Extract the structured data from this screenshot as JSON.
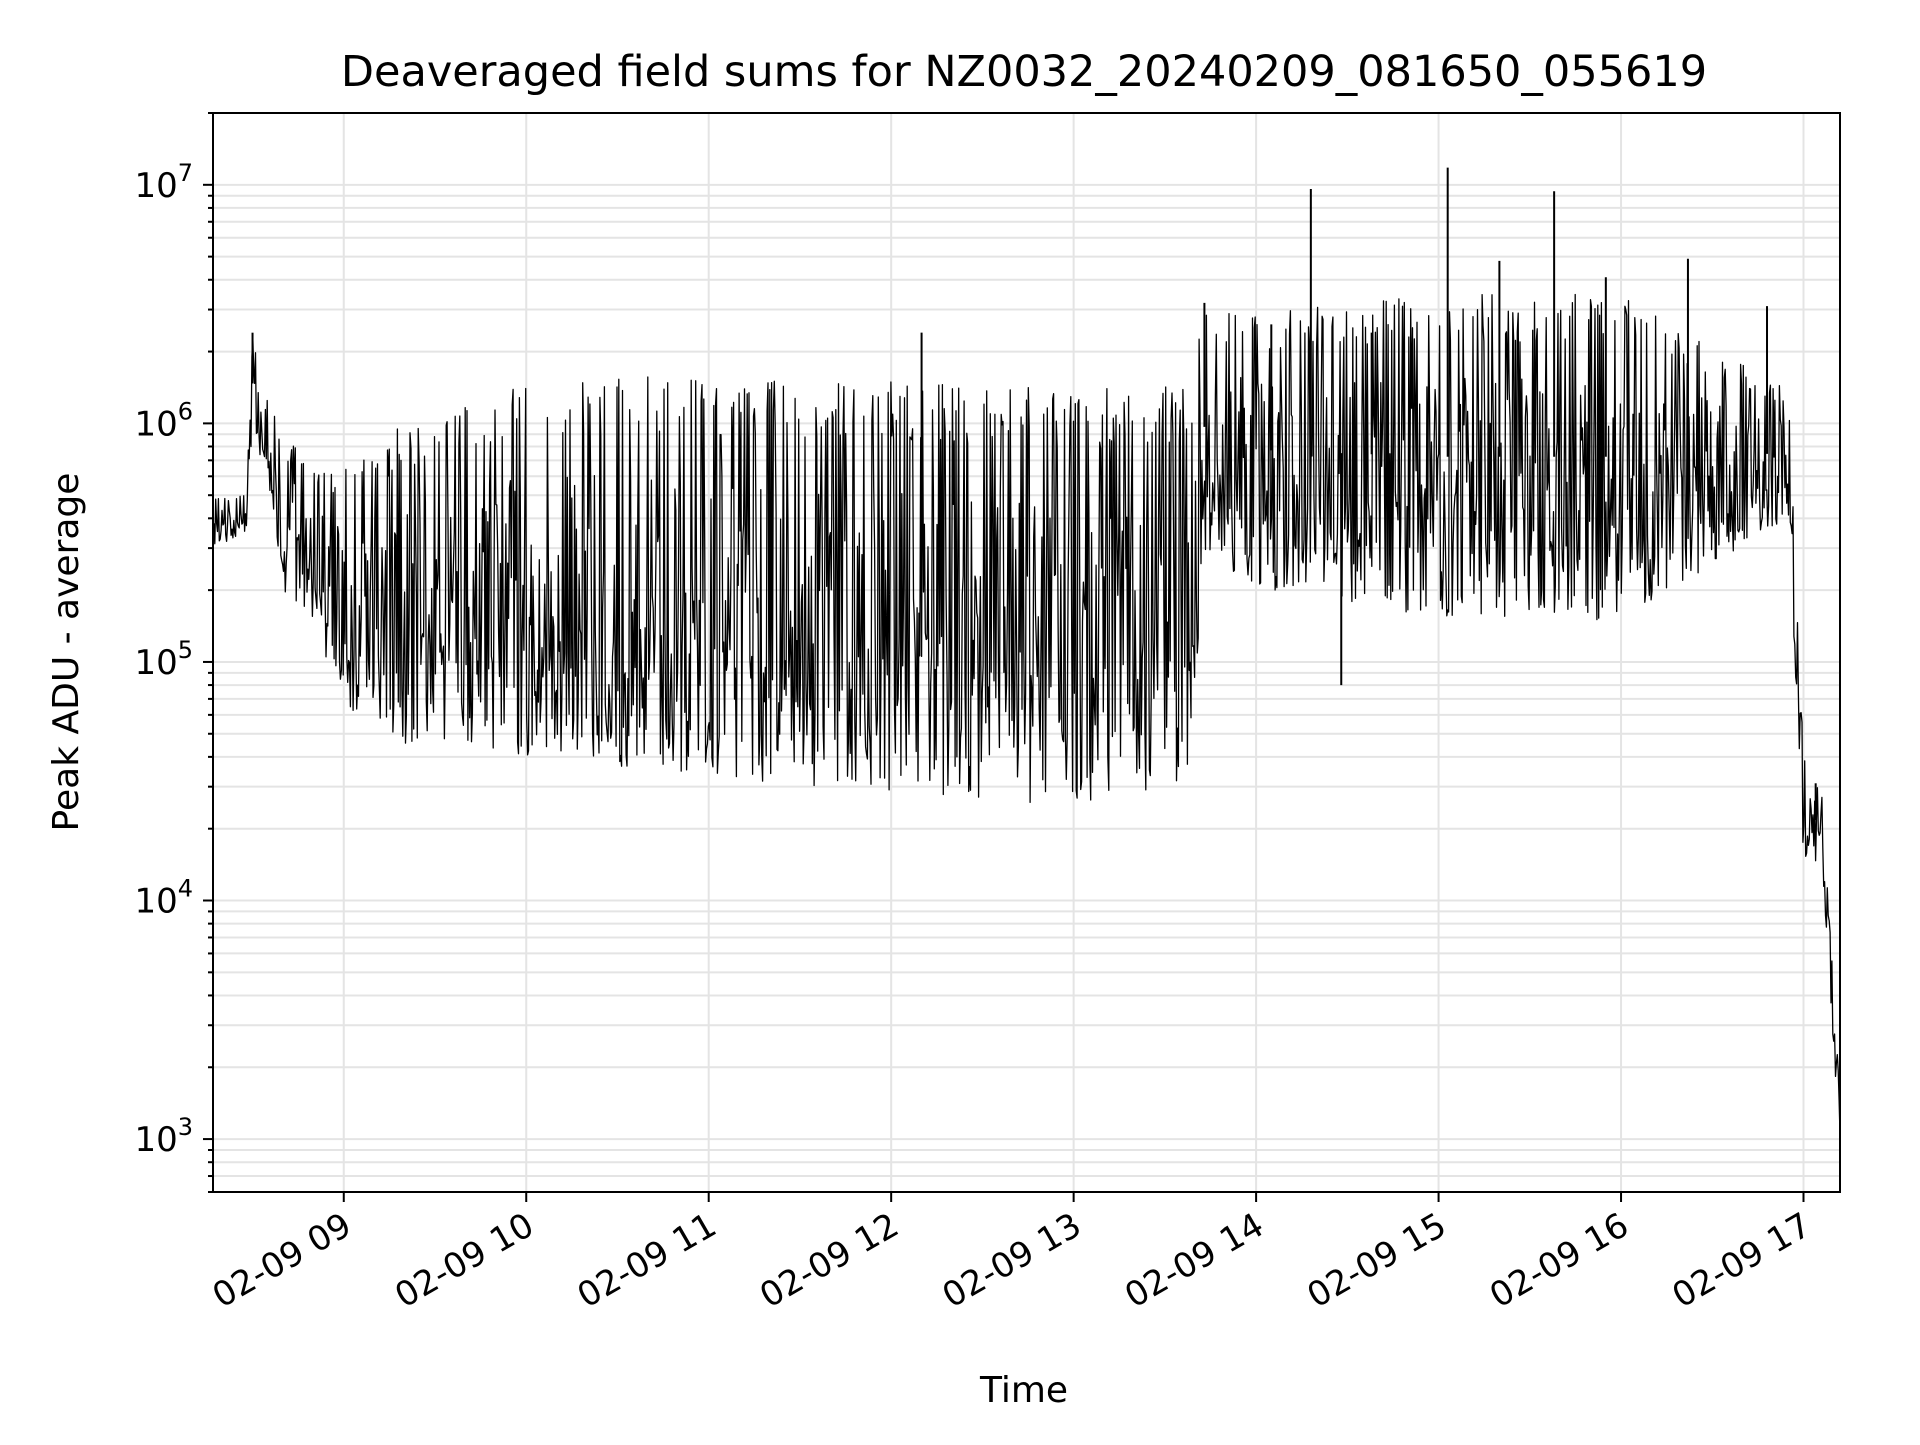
{
  "chart_data": {
    "type": "line",
    "title": "Deaveraged field sums for NZ0032_20240209_081650_055619",
    "xlabel": "Time",
    "ylabel": "Peak ADU - average",
    "yscale": "log",
    "grid": true,
    "ylim": [
      600,
      20000000
    ],
    "xlim": [
      "02-09 08:17",
      "02-09 17:12"
    ],
    "x_ticks": [
      {
        "label": "02-09 09",
        "value": "02-09 09:00"
      },
      {
        "label": "02-09 10",
        "value": "02-09 10:00"
      },
      {
        "label": "02-09 11",
        "value": "02-09 11:00"
      },
      {
        "label": "02-09 12",
        "value": "02-09 12:00"
      },
      {
        "label": "02-09 13",
        "value": "02-09 13:00"
      },
      {
        "label": "02-09 14",
        "value": "02-09 14:00"
      },
      {
        "label": "02-09 15",
        "value": "02-09 15:00"
      },
      {
        "label": "02-09 16",
        "value": "02-09 16:00"
      },
      {
        "label": "02-09 17",
        "value": "02-09 17:00"
      }
    ],
    "y_ticks": [
      {
        "base": "10",
        "exp": "3",
        "value": 1000
      },
      {
        "base": "10",
        "exp": "4",
        "value": 10000
      },
      {
        "base": "10",
        "exp": "5",
        "value": 100000
      },
      {
        "base": "10",
        "exp": "6",
        "value": 1000000
      },
      {
        "base": "10",
        "exp": "7",
        "value": 10000000
      }
    ],
    "series": [
      {
        "color": "#000000",
        "profile": [
          {
            "x": "02-09 08:17",
            "low": 300000,
            "high": 500000
          },
          {
            "x": "02-09 08:28",
            "low": 350000,
            "high": 500000
          },
          {
            "x": "02-09 08:30",
            "low": 900000,
            "high": 2400000
          },
          {
            "x": "02-09 08:35",
            "low": 600000,
            "high": 1300000
          },
          {
            "x": "02-09 08:40",
            "low": 200000,
            "high": 900000
          },
          {
            "x": "02-09 08:50",
            "low": 150000,
            "high": 700000
          },
          {
            "x": "02-09 09:00",
            "low": 60000,
            "high": 700000
          },
          {
            "x": "02-09 09:20",
            "low": 45000,
            "high": 1000000
          },
          {
            "x": "02-09 10:00",
            "low": 40000,
            "high": 1500000
          },
          {
            "x": "02-09 11:00",
            "low": 33000,
            "high": 1600000
          },
          {
            "x": "02-09 12:00",
            "low": 28000,
            "high": 1500000
          },
          {
            "x": "02-09 13:00",
            "low": 25000,
            "high": 1400000
          },
          {
            "x": "02-09 13:40",
            "low": 28000,
            "high": 1500000
          },
          {
            "x": "02-09 13:42",
            "low": 300000,
            "high": 3200000
          },
          {
            "x": "02-09 14:00",
            "low": 200000,
            "high": 3000000
          },
          {
            "x": "02-09 15:00",
            "low": 150000,
            "high": 3500000
          },
          {
            "x": "02-09 16:00",
            "low": 150000,
            "high": 3500000
          },
          {
            "x": "02-09 16:55",
            "low": 400000,
            "high": 1400000
          },
          {
            "x": "02-09 17:00",
            "low": 15000,
            "high": 40000
          },
          {
            "x": "02-09 17:06",
            "low": 14000,
            "high": 30000
          },
          {
            "x": "02-09 17:12",
            "low": 900,
            "high": 1500
          }
        ],
        "spikes": [
          {
            "x": "02-09 08:30",
            "y": 2400000
          },
          {
            "x": "02-09 12:10",
            "y": 2400000
          },
          {
            "x": "02-09 13:43",
            "y": 3200000
          },
          {
            "x": "02-09 14:05",
            "y": 2600000
          },
          {
            "x": "02-09 14:18",
            "y": 9600000
          },
          {
            "x": "02-09 14:28",
            "y": 80000
          },
          {
            "x": "02-09 14:38",
            "y": 2400000
          },
          {
            "x": "02-09 15:03",
            "y": 11800000
          },
          {
            "x": "02-09 15:20",
            "y": 4800000
          },
          {
            "x": "02-09 15:38",
            "y": 9400000
          },
          {
            "x": "02-09 15:55",
            "y": 4100000
          },
          {
            "x": "02-09 16:22",
            "y": 4900000
          },
          {
            "x": "02-09 16:48",
            "y": 3100000
          },
          {
            "x": "02-09 17:04",
            "y": 31000
          }
        ]
      }
    ]
  }
}
